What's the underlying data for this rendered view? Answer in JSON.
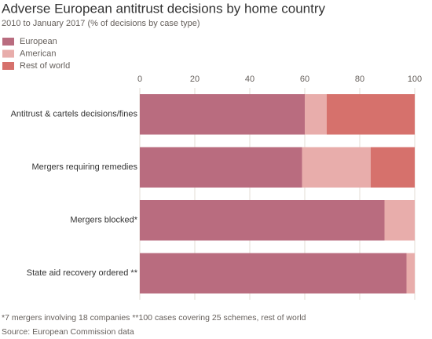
{
  "chart_data": {
    "type": "stacked-bar-horizontal",
    "title": "Adverse European antitrust decisions by home country",
    "subtitle": "2010 to January 2017 (% of decisions by case type)",
    "categories": [
      "Antitrust & cartels decisions/fines",
      "Mergers requiring remedies",
      "Mergers blocked*",
      "State aid recovery ordered **"
    ],
    "series": [
      {
        "name": "European",
        "color": "#b96c7f",
        "values": [
          60,
          59,
          89,
          97
        ]
      },
      {
        "name": "American",
        "color": "#e8adab",
        "values": [
          8,
          25,
          11,
          3
        ]
      },
      {
        "name": "Rest of world",
        "color": "#d6716c",
        "values": [
          32,
          16,
          0,
          0
        ]
      }
    ],
    "xlim": [
      0,
      100
    ],
    "xticks": [
      0,
      20,
      40,
      60,
      80,
      100
    ],
    "grid": true,
    "footnote": "*7 mergers involving 18 companies **100 cases covering 25 schemes, rest of world",
    "source": "Source: European Commission data"
  }
}
